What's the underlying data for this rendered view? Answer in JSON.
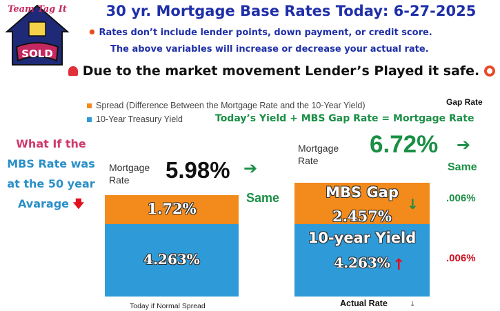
{
  "logo": {
    "line1": "Team Tag It",
    "line2": "SOLD"
  },
  "header": {
    "title": "30 yr. Mortgage Base Rates Today: 6-27-2025",
    "note_icon": "explosion-icon",
    "note_line1": "Rates don’t include lender points, down payment, or credit score.",
    "note_line2": "The above variables will increase or decrease your actual rate.",
    "warning_icon": "siren-icon",
    "warning": "Due to the market movement Lender’s Played it safe.",
    "warning_end_icon": "lifebuoy-icon"
  },
  "legend": {
    "spread_label": "Spread (Difference Between the Mortgage Rate and the 10-Year Yield)",
    "treasury_label": "10-Year Treasury Yield"
  },
  "annotations": {
    "gap_rate_header": "Gap Rate",
    "equation": "Today’s  Yield +  MBS Gap Rate = Mortgage Rate",
    "what_if": [
      "What If the",
      "MBS Rate was",
      "at the 50 year",
      "Avarage"
    ],
    "left_mortgage_label": "Mortgage Rate",
    "left_mortgage_value": "5.98%",
    "left_same": "Same",
    "right_mortgage_label": "Mortgage Rate",
    "right_mortgage_value": "6.72%",
    "right_same": "Same",
    "gap_change": ".006%",
    "yield_change": ".006%"
  },
  "chart_data": {
    "type": "bar",
    "stacked": true,
    "categories": [
      "Today if Normal Spread",
      "Actual Rate"
    ],
    "series": [
      {
        "name": "10-Year Treasury Yield",
        "values": [
          4.263,
          4.263
        ],
        "labels": [
          "4.263%",
          "4.263%"
        ]
      },
      {
        "name": "Spread (Difference Between the Mortgage Rate and the 10-Year Yield)",
        "values": [
          1.72,
          2.457
        ],
        "labels": [
          "1.72%",
          "2.457%"
        ]
      }
    ],
    "segment_titles": [
      "",
      "MBS Gap",
      "10-year Yield"
    ],
    "totals": [
      5.98,
      6.72
    ],
    "colors": {
      "treasury": "#2e9bd8",
      "spread": "#f28a1c"
    },
    "ylim": [
      0,
      7.5
    ],
    "xlabel": "",
    "ylabel": ""
  }
}
